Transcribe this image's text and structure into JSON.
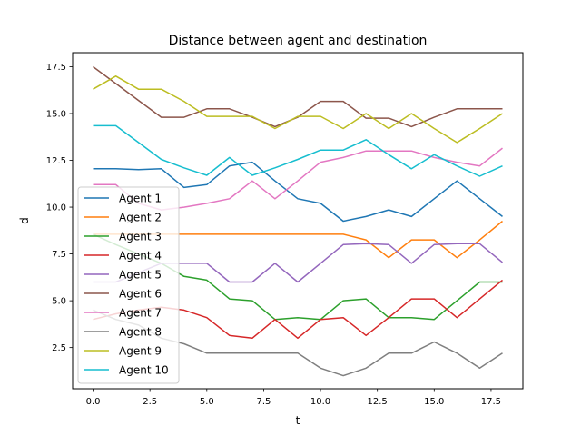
{
  "chart_data": {
    "type": "line",
    "title": "Distance between agent and destination",
    "xlabel": "t",
    "ylabel": "d",
    "xlim": [
      -0.9,
      18.9
    ],
    "ylim": [
      0.3,
      18.25
    ],
    "xticks": [
      0,
      2.5,
      5,
      7.5,
      10,
      12.5,
      15,
      17.5
    ],
    "xtick_labels": [
      "0.0",
      "2.5",
      "5.0",
      "7.5",
      "10.0",
      "12.5",
      "15.0",
      "17.5"
    ],
    "yticks": [
      2.5,
      5,
      7.5,
      10,
      12.5,
      15,
      17.5
    ],
    "ytick_labels": [
      "2.5",
      "5.0",
      "7.5",
      "10.0",
      "12.5",
      "15.0",
      "17.5"
    ],
    "grid": false,
    "legend_position": "left",
    "x": [
      0,
      1,
      2,
      3,
      4,
      5,
      6,
      7,
      8,
      9,
      10,
      11,
      12,
      13,
      14,
      15,
      16,
      17,
      18
    ],
    "series": [
      {
        "name": "Agent 1",
        "color": "#1f77b4",
        "values": [
          12.05,
          12.05,
          12.0,
          12.05,
          11.05,
          11.2,
          12.2,
          12.4,
          11.4,
          10.45,
          10.2,
          9.25,
          9.5,
          9.85,
          9.5,
          10.45,
          11.4,
          10.45,
          9.5
        ]
      },
      {
        "name": "Agent 2",
        "color": "#ff7f0e",
        "values": [
          8.55,
          8.55,
          8.55,
          8.55,
          8.55,
          8.55,
          8.55,
          8.55,
          8.55,
          8.55,
          8.55,
          8.55,
          8.25,
          7.3,
          8.25,
          8.25,
          7.3,
          8.25,
          9.25
        ]
      },
      {
        "name": "Agent 3",
        "color": "#2ca02c",
        "values": [
          8.55,
          8.0,
          7.5,
          7.0,
          6.3,
          6.1,
          5.1,
          5.0,
          4.0,
          4.1,
          4.0,
          5.0,
          5.1,
          4.1,
          4.1,
          4.0,
          5.0,
          6.0,
          6.0
        ]
      },
      {
        "name": "Agent 4",
        "color": "#d62728",
        "values": [
          4.0,
          4.3,
          4.5,
          4.65,
          4.5,
          4.1,
          3.15,
          3.0,
          4.0,
          3.0,
          4.0,
          4.1,
          3.15,
          4.1,
          5.1,
          5.1,
          4.1,
          5.1,
          6.1
        ]
      },
      {
        "name": "Agent 5",
        "color": "#9467bd",
        "values": [
          6.0,
          6.0,
          6.5,
          7.0,
          7.0,
          7.0,
          6.0,
          6.0,
          7.0,
          6.0,
          7.0,
          8.0,
          8.05,
          8.0,
          7.0,
          8.0,
          8.05,
          8.05,
          7.05
        ]
      },
      {
        "name": "Agent 6",
        "color": "#8c564b",
        "values": [
          17.5,
          16.6,
          15.7,
          14.8,
          14.8,
          15.25,
          15.25,
          14.8,
          14.3,
          14.8,
          15.65,
          15.65,
          14.75,
          14.75,
          14.3,
          14.8,
          15.25,
          15.25,
          15.25
        ]
      },
      {
        "name": "Agent 7",
        "color": "#e377c2",
        "values": [
          11.2,
          11.2,
          10.2,
          9.85,
          10.0,
          10.2,
          10.45,
          11.4,
          10.45,
          11.4,
          12.4,
          12.65,
          13.0,
          13.0,
          13.0,
          12.65,
          12.4,
          12.2,
          13.15
        ]
      },
      {
        "name": "Agent 8",
        "color": "#7f7f7f",
        "values": [
          4.5,
          4.0,
          3.7,
          3.0,
          2.7,
          2.2,
          2.2,
          2.2,
          2.2,
          2.2,
          1.4,
          1.0,
          1.4,
          2.2,
          2.2,
          2.8,
          2.2,
          1.4,
          2.2
        ]
      },
      {
        "name": "Agent 9",
        "color": "#bcbd22",
        "values": [
          16.3,
          17.0,
          16.3,
          16.3,
          15.65,
          14.85,
          14.85,
          14.85,
          14.2,
          14.85,
          14.85,
          14.2,
          15.0,
          14.2,
          15.0,
          14.2,
          13.45,
          14.2,
          15.0
        ]
      },
      {
        "name": "Agent 10",
        "color": "#17becf",
        "values": [
          14.35,
          14.35,
          13.45,
          12.55,
          12.1,
          11.7,
          12.65,
          11.7,
          12.1,
          12.55,
          13.05,
          13.05,
          13.6,
          12.8,
          12.05,
          12.8,
          12.2,
          11.65,
          12.2
        ]
      }
    ]
  }
}
